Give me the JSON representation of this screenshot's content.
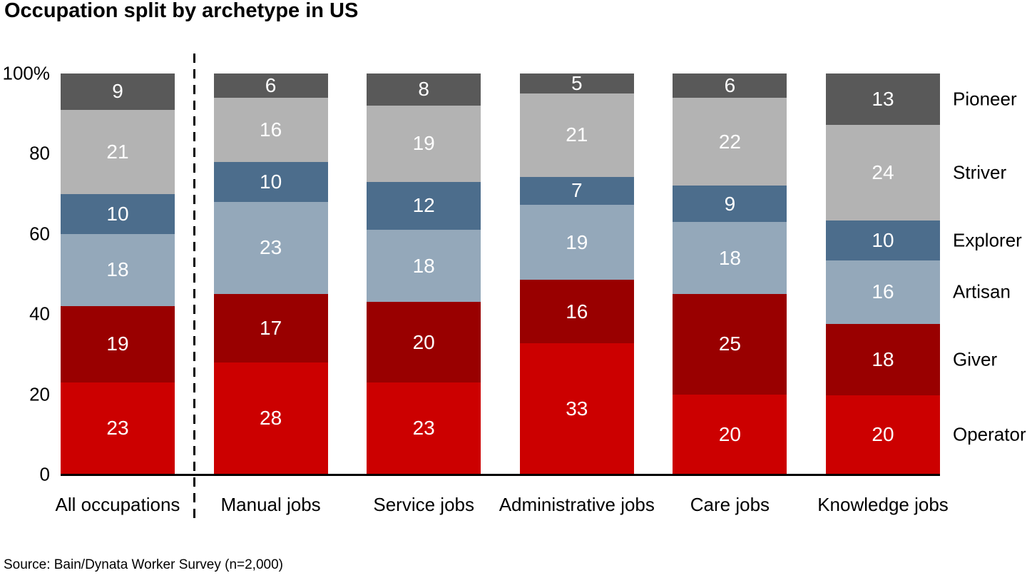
{
  "title": "Occupation split by archetype in US",
  "source_note": "Source: Bain/Dynata Worker Survey (n=2,000)",
  "chart_data": {
    "type": "bar",
    "variant": "stacked-percent",
    "title": "Occupation split by archetype in US",
    "unit": "%",
    "grid": false,
    "categories": [
      "All occupations",
      "Manual jobs",
      "Service jobs",
      "Administrative jobs",
      "Care jobs",
      "Knowledge jobs"
    ],
    "stack_order": "bottom-to-top",
    "series": [
      {
        "name": "Operator",
        "color": "#cc0000",
        "values": [
          23,
          28,
          23,
          33,
          20,
          20
        ]
      },
      {
        "name": "Giver",
        "color": "#990000",
        "values": [
          19,
          17,
          20,
          16,
          25,
          18
        ]
      },
      {
        "name": "Artisan",
        "color": "#94a8ba",
        "values": [
          18,
          23,
          18,
          19,
          18,
          16
        ]
      },
      {
        "name": "Explorer",
        "color": "#4c6d8c",
        "values": [
          10,
          10,
          12,
          7,
          9,
          10
        ]
      },
      {
        "name": "Striver",
        "color": "#b3b3b3",
        "values": [
          21,
          16,
          19,
          21,
          22,
          24
        ]
      },
      {
        "name": "Pioneer",
        "color": "#595959",
        "values": [
          9,
          6,
          8,
          5,
          6,
          13
        ]
      }
    ],
    "y_axis": {
      "min": 0,
      "max": 100,
      "ticks": [
        {
          "value": 0,
          "label": "0"
        },
        {
          "value": 20,
          "label": "20"
        },
        {
          "value": 40,
          "label": "40"
        },
        {
          "value": 60,
          "label": "60"
        },
        {
          "value": 80,
          "label": "80"
        },
        {
          "value": 100,
          "label": "100%"
        }
      ]
    },
    "legend": {
      "position": "right",
      "labels_top_to_bottom": [
        "Pioneer",
        "Striver",
        "Explorer",
        "Artisan",
        "Giver",
        "Operator"
      ]
    },
    "separator": {
      "style": "dashed-vertical-line",
      "after_category": "All occupations"
    }
  }
}
